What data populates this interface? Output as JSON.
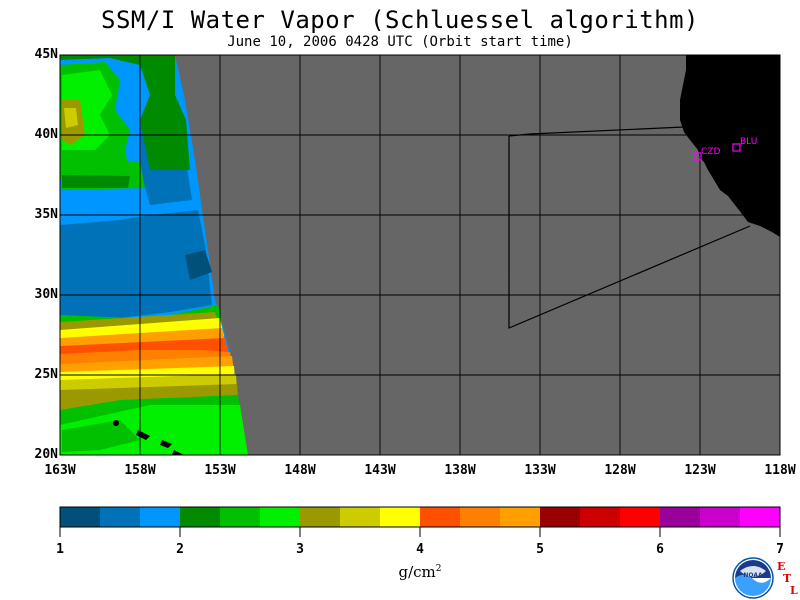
{
  "title": "SSM/I Water Vapor (Schluessel algorithm)",
  "subtitle": "June 10, 2006  0428 UTC  (Orbit start time)",
  "lat_labels": [
    "45N",
    "40N",
    "35N",
    "30N",
    "25N",
    "20N"
  ],
  "lon_labels": [
    "163W",
    "158W",
    "153W",
    "148W",
    "143W",
    "138W",
    "133W",
    "128W",
    "123W",
    "118W"
  ],
  "stations": [
    {
      "id": "CZD",
      "lon": -123.2,
      "lat": 38.6
    },
    {
      "id": "BLU",
      "lon": -120.8,
      "lat": 39.3
    }
  ],
  "colorbar": {
    "ticks": [
      "1",
      "2",
      "3",
      "4",
      "5",
      "6",
      "7"
    ],
    "units": "g/cm",
    "units_sup": "2",
    "colors": [
      "#00507a",
      "#0072b8",
      "#0096ff",
      "#008a00",
      "#00c000",
      "#00f000",
      "#9a9a00",
      "#cccc00",
      "#ffff00",
      "#ff5000",
      "#ff8000",
      "#ffa000",
      "#9a0000",
      "#cc0000",
      "#ff0000",
      "#9a009a",
      "#cc00cc",
      "#ff00ff"
    ]
  },
  "domain": {
    "lon_min": -163,
    "lon_max": -118,
    "lat_min": 20,
    "lat_max": 45
  },
  "no_data_color": "#666666",
  "land_color": "#000000",
  "logo": {
    "text": "NOAA"
  },
  "lab_letters": [
    "E",
    "T",
    "L"
  ]
}
